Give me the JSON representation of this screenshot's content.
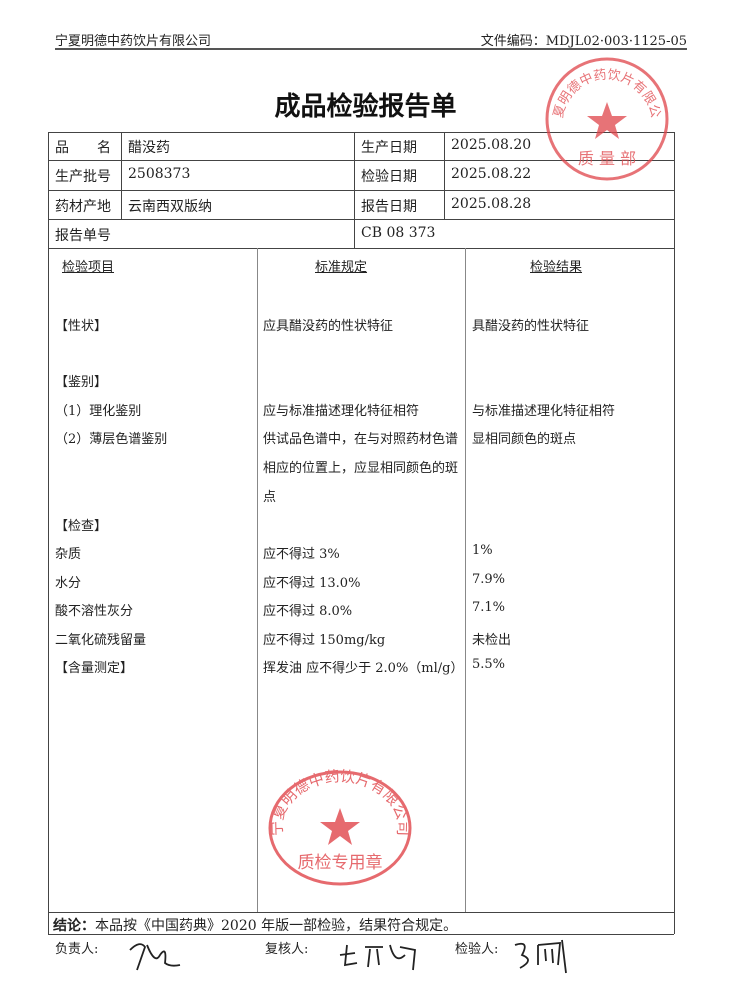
{
  "header": {
    "company": "宁夏明德中药饮片有限公司",
    "doc_code": "文件编码：MDJL02·003·1125-05"
  },
  "title": "成品检验报告单",
  "info": {
    "product_name_label": "品　　名",
    "product_name": "醋没药",
    "production_date_label": "生产日期",
    "production_date": "2025.08.20",
    "batch_label": "生产批号",
    "batch": "2508373",
    "inspection_date_label": "检验日期",
    "inspection_date": "2025.08.22",
    "origin_label": "药材产地",
    "origin": "云南西双版纳",
    "report_date_label": "报告日期",
    "report_date": "2025.08.28",
    "report_no_label": "报告单号",
    "report_no": "CB 08 373"
  },
  "columns": [
    "检验项目",
    "标准规定",
    "检验结果"
  ],
  "rows": [
    {
      "item": "【性状】",
      "standard": "应具醋没药的性状特征",
      "result": "具醋没药的性状特征"
    },
    {
      "item": "【鉴别】",
      "standard": "",
      "result": ""
    },
    {
      "item": "（1）理化鉴别",
      "standard": "应与标准描述理化特征相符",
      "result": "与标准描述理化特征相符"
    },
    {
      "item": "（2）薄层色谱鉴别",
      "standard": "供试品色谱中，在与对照药材色谱",
      "result": "显相同颜色的斑点"
    },
    {
      "item": "",
      "standard": "相应的位置上，应显相同颜色的斑",
      "result": ""
    },
    {
      "item": "",
      "standard": "点",
      "result": ""
    },
    {
      "item": "【检查】",
      "standard": "",
      "result": ""
    },
    {
      "item": "杂质",
      "standard": "应不得过 3%",
      "result": "1%"
    },
    {
      "item": "水分",
      "standard": "应不得过 13.0%",
      "result": "7.9%"
    },
    {
      "item": "酸不溶性灰分",
      "standard": "应不得过 8.0%",
      "result": "7.1%"
    },
    {
      "item": "二氧化硫残留量",
      "standard": "应不得过 150mg/kg",
      "result": "未检出"
    },
    {
      "item": "【含量测定】",
      "standard": "挥发油 应不得少于 2.0%（ml/g）",
      "result": "5.5%"
    }
  ],
  "conclusion_label": "结论：",
  "conclusion": "本品按《中国药典》2020 年版一部检验，结果符合规定。",
  "signatures": {
    "responsible_label": "负责人:",
    "reviewer_label": "复核人:",
    "inspector_label": "检验人:"
  },
  "stamps": {
    "top": "宁夏明德中药饮片有限公司 质量部",
    "bottom": "宁夏明德中药饮片有限公司 质检专用章"
  },
  "colors": {
    "stamp": "#e0454a"
  }
}
